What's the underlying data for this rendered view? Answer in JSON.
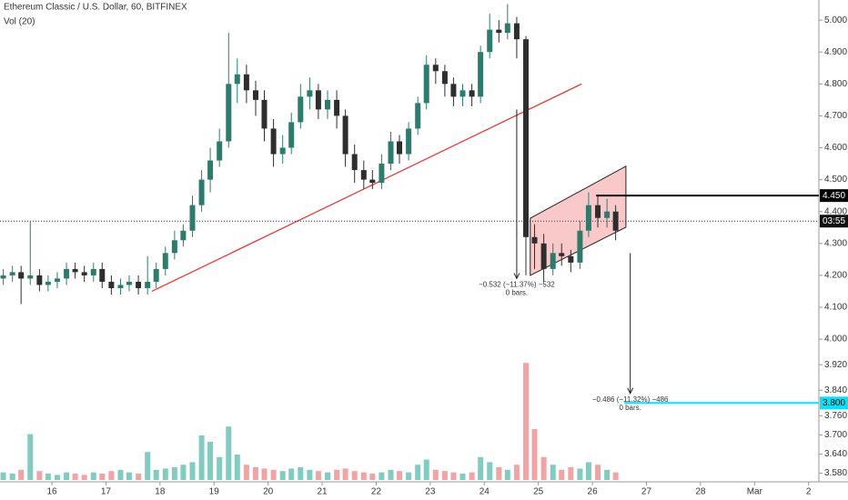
{
  "chart_data": {
    "type": "candlestick",
    "title": "Ethereum Classic / U.S. Dollar, 60, BITFINEX",
    "subtitle": "Vol (20)",
    "x": [
      15.1,
      15.27,
      15.43,
      15.6,
      15.77,
      15.93,
      16.1,
      16.27,
      16.43,
      16.6,
      16.77,
      16.93,
      17.1,
      17.27,
      17.43,
      17.6,
      17.77,
      17.93,
      18.1,
      18.27,
      18.43,
      18.6,
      18.77,
      18.93,
      19.1,
      19.27,
      19.43,
      19.6,
      19.77,
      19.93,
      20.1,
      20.27,
      20.43,
      20.6,
      20.77,
      20.93,
      21.1,
      21.27,
      21.43,
      21.6,
      21.77,
      21.93,
      22.1,
      22.27,
      22.43,
      22.6,
      22.77,
      22.93,
      23.1,
      23.27,
      23.43,
      23.6,
      23.77,
      23.93,
      24.1,
      24.27,
      24.43,
      24.6,
      24.77,
      24.93,
      25.1,
      25.27,
      25.43,
      25.6,
      25.77,
      25.93,
      26.1,
      26.27,
      26.43
    ],
    "ohlc": [
      [
        4.19,
        4.22,
        4.17,
        4.2
      ],
      [
        4.2,
        4.23,
        4.18,
        4.21
      ],
      [
        4.21,
        4.23,
        4.11,
        4.19
      ],
      [
        4.19,
        4.37,
        4.17,
        4.2
      ],
      [
        4.2,
        4.22,
        4.15,
        4.17
      ],
      [
        4.17,
        4.2,
        4.15,
        4.18
      ],
      [
        4.18,
        4.21,
        4.16,
        4.19
      ],
      [
        4.19,
        4.24,
        4.17,
        4.22
      ],
      [
        4.22,
        4.24,
        4.19,
        4.21
      ],
      [
        4.21,
        4.23,
        4.18,
        4.2
      ],
      [
        4.2,
        4.24,
        4.18,
        4.22
      ],
      [
        4.22,
        4.24,
        4.16,
        4.18
      ],
      [
        4.18,
        4.2,
        4.14,
        4.16
      ],
      [
        4.16,
        4.19,
        4.14,
        4.17
      ],
      [
        4.17,
        4.2,
        4.15,
        4.18
      ],
      [
        4.18,
        4.2,
        4.14,
        4.16
      ],
      [
        4.16,
        4.26,
        4.14,
        4.18
      ],
      [
        4.18,
        4.24,
        4.16,
        4.22
      ],
      [
        4.22,
        4.29,
        4.2,
        4.27
      ],
      [
        4.27,
        4.34,
        4.25,
        4.31
      ],
      [
        4.31,
        4.36,
        4.29,
        4.34
      ],
      [
        4.34,
        4.45,
        4.32,
        4.42
      ],
      [
        4.42,
        4.53,
        4.4,
        4.5
      ],
      [
        4.5,
        4.6,
        4.46,
        4.56
      ],
      [
        4.56,
        4.66,
        4.54,
        4.62
      ],
      [
        4.62,
        4.96,
        4.6,
        4.8
      ],
      [
        4.8,
        4.88,
        4.74,
        4.83
      ],
      [
        4.83,
        4.86,
        4.74,
        4.78
      ],
      [
        4.78,
        4.81,
        4.7,
        4.75
      ],
      [
        4.75,
        4.78,
        4.62,
        4.66
      ],
      [
        4.66,
        4.69,
        4.54,
        4.58
      ],
      [
        4.58,
        4.64,
        4.55,
        4.6
      ],
      [
        4.6,
        4.71,
        4.58,
        4.68
      ],
      [
        4.68,
        4.8,
        4.66,
        4.76
      ],
      [
        4.76,
        4.82,
        4.72,
        4.78
      ],
      [
        4.78,
        4.8,
        4.69,
        4.72
      ],
      [
        4.72,
        4.78,
        4.69,
        4.75
      ],
      [
        4.75,
        4.78,
        4.66,
        4.7
      ],
      [
        4.7,
        4.72,
        4.54,
        4.58
      ],
      [
        4.58,
        4.61,
        4.49,
        4.53
      ],
      [
        4.53,
        4.56,
        4.47,
        4.5
      ],
      [
        4.5,
        4.53,
        4.47,
        4.49
      ],
      [
        4.49,
        4.58,
        4.47,
        4.55
      ],
      [
        4.55,
        4.65,
        4.53,
        4.62
      ],
      [
        4.62,
        4.64,
        4.55,
        4.58
      ],
      [
        4.58,
        4.68,
        4.56,
        4.66
      ],
      [
        4.66,
        4.76,
        4.64,
        4.74
      ],
      [
        4.74,
        4.89,
        4.72,
        4.86
      ],
      [
        4.86,
        4.88,
        4.8,
        4.84
      ],
      [
        4.84,
        4.86,
        4.76,
        4.8
      ],
      [
        4.8,
        4.82,
        4.73,
        4.76
      ],
      [
        4.76,
        4.8,
        4.73,
        4.78
      ],
      [
        4.78,
        4.8,
        4.73,
        4.76
      ],
      [
        4.76,
        4.92,
        4.74,
        4.9
      ],
      [
        4.9,
        5.02,
        4.88,
        4.97
      ],
      [
        4.97,
        5.0,
        4.93,
        4.96
      ],
      [
        4.96,
        5.05,
        4.94,
        4.99
      ],
      [
        4.99,
        5.01,
        4.88,
        4.94
      ],
      [
        4.94,
        4.95,
        4.2,
        4.32
      ],
      [
        4.32,
        4.36,
        4.22,
        4.3
      ],
      [
        4.3,
        4.33,
        4.18,
        4.22
      ],
      [
        4.22,
        4.3,
        4.2,
        4.27
      ],
      [
        4.27,
        4.3,
        4.23,
        4.26
      ],
      [
        4.26,
        4.28,
        4.21,
        4.24
      ],
      [
        4.24,
        4.37,
        4.22,
        4.34
      ],
      [
        4.34,
        4.46,
        4.32,
        4.42
      ],
      [
        4.42,
        4.45,
        4.35,
        4.38
      ],
      [
        4.38,
        4.44,
        4.35,
        4.4
      ],
      [
        4.4,
        4.42,
        4.31,
        4.34
      ]
    ],
    "volume": [
      6,
      5,
      8,
      36,
      7,
      5,
      4,
      6,
      5,
      4,
      6,
      5,
      7,
      8,
      6,
      5,
      22,
      8,
      9,
      10,
      12,
      14,
      35,
      30,
      18,
      42,
      20,
      12,
      10,
      9,
      8,
      7,
      9,
      10,
      8,
      7,
      6,
      8,
      9,
      7,
      6,
      5,
      6,
      8,
      7,
      6,
      12,
      16,
      8,
      7,
      6,
      5,
      6,
      18,
      14,
      10,
      8,
      12,
      92,
      40,
      18,
      12,
      8,
      10,
      9,
      14,
      12,
      8,
      6
    ],
    "volume_ylim": [
      0,
      100
    ],
    "up_color": "#2a7d6c",
    "down_color": "#2e2e2e",
    "volume_up_color": "#7fcdc1",
    "volume_down_color": "#f3a3a3",
    "xlim": [
      15.04,
      30.19
    ],
    "xticks": [
      16,
      17,
      18,
      19,
      20,
      21,
      22,
      23,
      24,
      25,
      26,
      27,
      28,
      {
        "value": 29,
        "label": "Mar"
      },
      {
        "value": 30,
        "label": "2"
      }
    ],
    "ylim": [
      3.553,
      5.063
    ],
    "yticks": [
      {
        "value": 5,
        "label": "5.000"
      },
      {
        "value": 4.9,
        "label": "4.900"
      },
      {
        "value": 4.8,
        "label": "4.800"
      },
      {
        "value": 4.7,
        "label": "4.700"
      },
      {
        "value": 4.6,
        "label": "4.600"
      },
      {
        "value": 4.5,
        "label": "4.500"
      },
      {
        "value": 4.4,
        "label": "4.400"
      },
      {
        "value": 4.3,
        "label": "4.300"
      },
      {
        "value": 4.2,
        "label": "4.200"
      },
      {
        "value": 4.1,
        "label": "4.100"
      },
      {
        "value": 4,
        "label": "4.000"
      },
      {
        "value": 3.92,
        "label": "3.920"
      },
      {
        "value": 3.84,
        "label": "3.840"
      },
      {
        "value": 3.76,
        "label": "3.760"
      },
      {
        "value": 3.7,
        "label": "3.700"
      },
      {
        "value": 3.64,
        "label": "3.640"
      },
      {
        "value": 3.58,
        "label": "3.580"
      }
    ],
    "last_price": {
      "value": 4.37,
      "label": "03:55"
    },
    "hlines": [
      {
        "value": 4.45,
        "label": "4.450",
        "start": 26.07,
        "color": "#000000"
      },
      {
        "value": 3.8,
        "label": "3.800",
        "start": 26.59,
        "color": "#00e5ff"
      }
    ],
    "trendline": {
      "x": [
        17.85,
        25.8
      ],
      "y": [
        4.15,
        4.8
      ],
      "color": "#e53935"
    },
    "channel": {
      "x": [
        24.85,
        26.62,
        26.62,
        24.85
      ],
      "y": [
        4.379,
        4.542,
        4.351,
        4.2
      ],
      "color": "#f8bcbc"
    },
    "measures": [
      {
        "x": 24.6,
        "from": 4.72,
        "to": 4.19,
        "label": "−0.532 (−11.37%) −532",
        "bars": "0 bars."
      },
      {
        "x": 26.7,
        "from": 4.27,
        "to": 3.83,
        "label": "−0.486 (−11.32%) −486",
        "bars": "0 bars."
      }
    ]
  }
}
